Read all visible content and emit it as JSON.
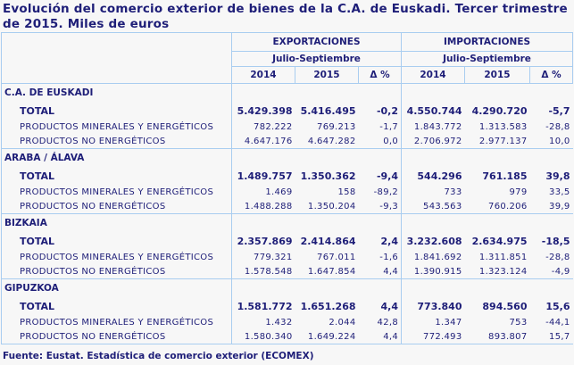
{
  "title": "Evolución del comercio exterior de bienes de la C.A. de Euskadi. Tercer trimestre de 2015. Miles de euros",
  "headers": {
    "exports": "EXPORTACIONES",
    "imports": "IMPORTACIONES",
    "period_exp": "Julio-Septiembre",
    "period_imp": "Julio-Septiembre",
    "y1": "2014",
    "y2": "2015",
    "delta": "Δ %"
  },
  "sections": [
    {
      "name": "C.A. DE EUSKADI",
      "rows": [
        {
          "label": "TOTAL",
          "v": [
            "5.429.398",
            "5.416.495",
            "-0,2",
            "4.550.744",
            "4.290.720",
            "-5,7"
          ]
        },
        {
          "label": "PRODUCTOS MINERALES Y ENERGÉTICOS",
          "v": [
            "782.222",
            "769.213",
            "-1,7",
            "1.843.772",
            "1.313.583",
            "-28,8"
          ]
        },
        {
          "label": "PRODUCTOS NO ENERGÉTICOS",
          "v": [
            "4.647.176",
            "4.647.282",
            "0,0",
            "2.706.972",
            "2.977.137",
            "10,0"
          ]
        }
      ]
    },
    {
      "name": "ARABA / ÁLAVA",
      "rows": [
        {
          "label": "TOTAL",
          "v": [
            "1.489.757",
            "1.350.362",
            "-9,4",
            "544.296",
            "761.185",
            "39,8"
          ]
        },
        {
          "label": "PRODUCTOS MINERALES Y ENERGÉTICOS",
          "v": [
            "1.469",
            "158",
            "-89,2",
            "733",
            "979",
            "33,5"
          ]
        },
        {
          "label": "PRODUCTOS NO ENERGÉTICOS",
          "v": [
            "1.488.288",
            "1.350.204",
            "-9,3",
            "543.563",
            "760.206",
            "39,9"
          ]
        }
      ]
    },
    {
      "name": "BIZKAIA",
      "rows": [
        {
          "label": "TOTAL",
          "v": [
            "2.357.869",
            "2.414.864",
            "2,4",
            "3.232.608",
            "2.634.975",
            "-18,5"
          ]
        },
        {
          "label": "PRODUCTOS MINERALES Y ENERGÉTICOS",
          "v": [
            "779.321",
            "767.011",
            "-1,6",
            "1.841.692",
            "1.311.851",
            "-28,8"
          ]
        },
        {
          "label": "PRODUCTOS NO ENERGÉTICOS",
          "v": [
            "1.578.548",
            "1.647.854",
            "4,4",
            "1.390.915",
            "1.323.124",
            "-4,9"
          ]
        }
      ]
    },
    {
      "name": "GIPUZKOA",
      "rows": [
        {
          "label": "TOTAL",
          "v": [
            "1.581.772",
            "1.651.268",
            "4,4",
            "773.840",
            "894.560",
            "15,6"
          ]
        },
        {
          "label": "PRODUCTOS MINERALES Y ENERGÉTICOS",
          "v": [
            "1.432",
            "2.044",
            "42,8",
            "1.347",
            "753",
            "-44,1"
          ]
        },
        {
          "label": "PRODUCTOS NO ENERGÉTICOS",
          "v": [
            "1.580.340",
            "1.649.224",
            "4,4",
            "772.493",
            "893.807",
            "15,7"
          ]
        }
      ]
    }
  ],
  "footer": "Fuente: Eustat. Estadística de comercio exterior (ECOMEX)"
}
